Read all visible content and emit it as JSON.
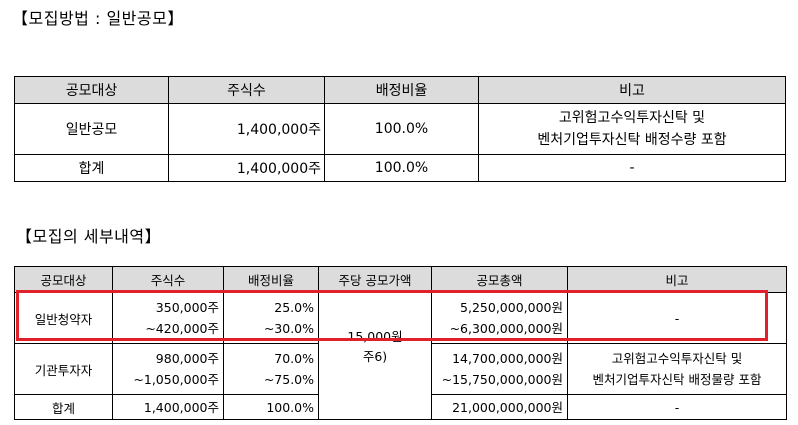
{
  "section1": {
    "title": "【모집방법 : 일반공모】",
    "headers": [
      "공모대상",
      "주식수",
      "배정비율",
      "비고"
    ],
    "rows": [
      {
        "target": "일반공모",
        "shares": "1,400,000주",
        "ratio": "100.0%",
        "note_line1": "고위험고수익투자신탁 및",
        "note_line2": "벤처기업투자신탁 배정수량 포함"
      },
      {
        "target": "합계",
        "shares": "1,400,000주",
        "ratio": "100.0%",
        "note": "-"
      }
    ]
  },
  "section2": {
    "title": "【모집의 세부내역】",
    "headers": [
      "공모대상",
      "주식수",
      "배정비율",
      "주당 공모가액",
      "공모총액",
      "비고"
    ],
    "rows": [
      {
        "target": "일반청약자",
        "shares_1": "350,000주",
        "shares_2": "~420,000주",
        "ratio_1": "25.0%",
        "ratio_2": "~30.0%",
        "total_1": "5,250,000,000원",
        "total_2": "~6,300,000,000원",
        "note": "-"
      },
      {
        "target": "기관투자자",
        "shares_1": "980,000주",
        "shares_2": "~1,050,000주",
        "ratio_1": "70.0%",
        "ratio_2": "~75.0%",
        "total_1": "14,700,000,000원",
        "total_2": "~15,750,000,000원",
        "note_line1": "고위험고수익투자신탁 및",
        "note_line2": "벤처기업투자신탁 배정물량 포함"
      },
      {
        "target": "합계",
        "shares": "1,400,000주",
        "ratio": "100.0%",
        "total": "21,000,000,000원",
        "note": "-"
      }
    ],
    "price_line1": "15,000원",
    "price_line2": "주6)"
  },
  "highlight_color": "#e0202b"
}
